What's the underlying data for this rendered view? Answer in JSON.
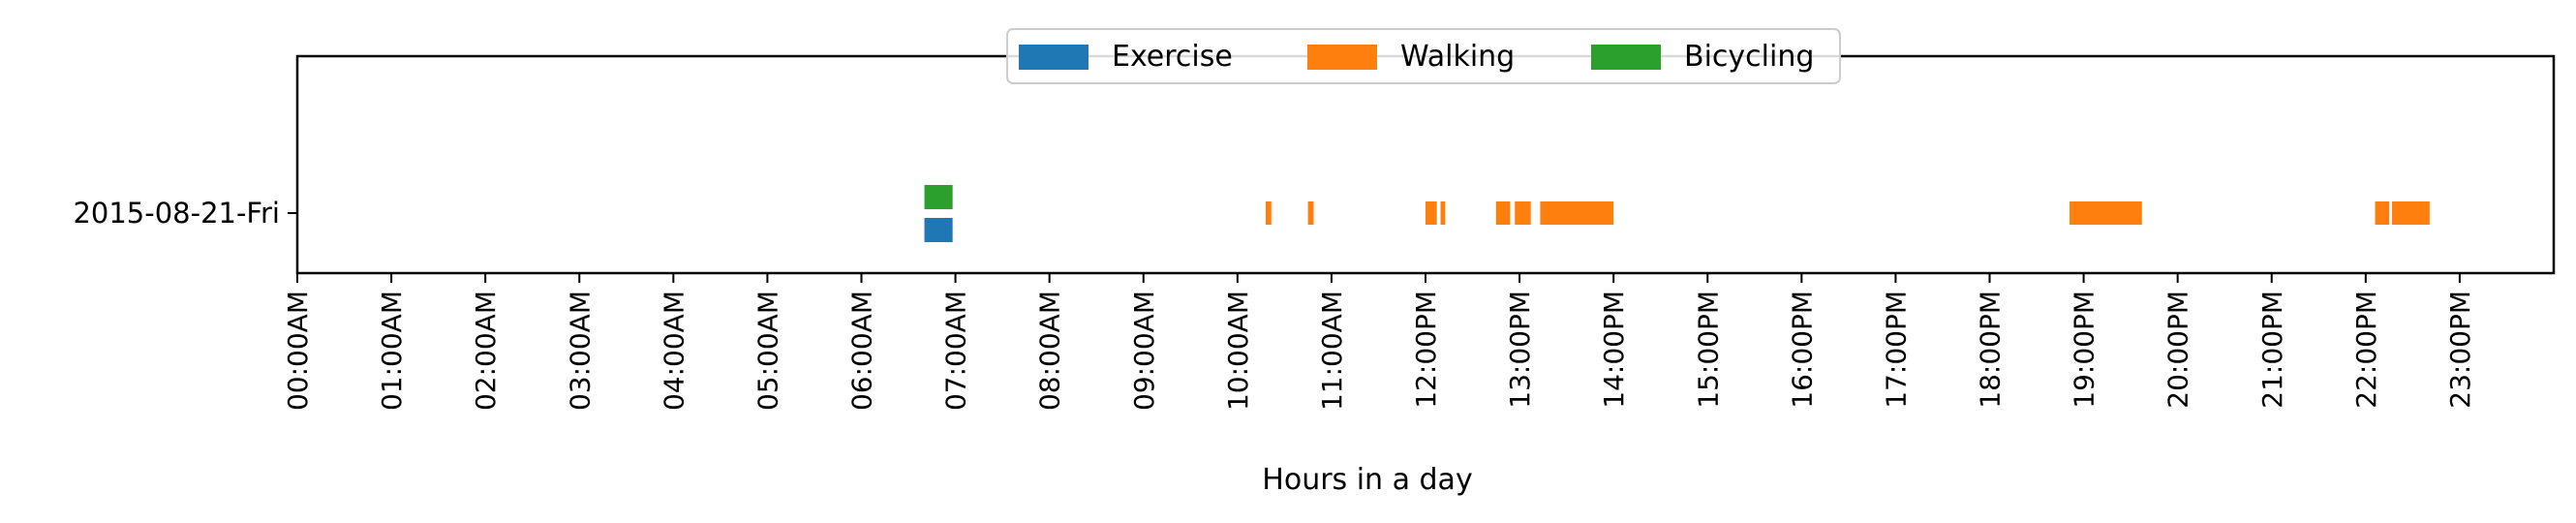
{
  "chart_data": {
    "type": "timeline",
    "title": "",
    "xlabel": "Hours in a day",
    "ylabel": "",
    "xlim": [
      0,
      24
    ],
    "x_ticks": [
      {
        "hour": 0,
        "label": "00:00AM"
      },
      {
        "hour": 1,
        "label": "01:00AM"
      },
      {
        "hour": 2,
        "label": "02:00AM"
      },
      {
        "hour": 3,
        "label": "03:00AM"
      },
      {
        "hour": 4,
        "label": "04:00AM"
      },
      {
        "hour": 5,
        "label": "05:00AM"
      },
      {
        "hour": 6,
        "label": "06:00AM"
      },
      {
        "hour": 7,
        "label": "07:00AM"
      },
      {
        "hour": 8,
        "label": "08:00AM"
      },
      {
        "hour": 9,
        "label": "09:00AM"
      },
      {
        "hour": 10,
        "label": "10:00AM"
      },
      {
        "hour": 11,
        "label": "11:00AM"
      },
      {
        "hour": 12,
        "label": "12:00PM"
      },
      {
        "hour": 13,
        "label": "13:00PM"
      },
      {
        "hour": 14,
        "label": "14:00PM"
      },
      {
        "hour": 15,
        "label": "15:00PM"
      },
      {
        "hour": 16,
        "label": "16:00PM"
      },
      {
        "hour": 17,
        "label": "17:00PM"
      },
      {
        "hour": 18,
        "label": "18:00PM"
      },
      {
        "hour": 19,
        "label": "19:00PM"
      },
      {
        "hour": 20,
        "label": "20:00PM"
      },
      {
        "hour": 21,
        "label": "21:00PM"
      },
      {
        "hour": 22,
        "label": "22:00PM"
      },
      {
        "hour": 23,
        "label": "23:00PM"
      }
    ],
    "categories": [
      "2015-08-21-Fri"
    ],
    "legend": {
      "placement": "top-center",
      "columns": 3
    },
    "grid": false,
    "series": [
      {
        "name": "Exercise",
        "color": "#1f77b4",
        "segments": [
          {
            "day": "2015-08-21-Fri",
            "start": 6.67,
            "end": 6.97
          }
        ]
      },
      {
        "name": "Walking",
        "color": "#ff7f0e",
        "segments": [
          {
            "day": "2015-08-21-Fri",
            "start": 10.3,
            "end": 10.36
          },
          {
            "day": "2015-08-21-Fri",
            "start": 10.75,
            "end": 10.81
          },
          {
            "day": "2015-08-21-Fri",
            "start": 12.0,
            "end": 12.12
          },
          {
            "day": "2015-08-21-Fri",
            "start": 12.16,
            "end": 12.21
          },
          {
            "day": "2015-08-21-Fri",
            "start": 12.75,
            "end": 12.9
          },
          {
            "day": "2015-08-21-Fri",
            "start": 12.95,
            "end": 13.12
          },
          {
            "day": "2015-08-21-Fri",
            "start": 13.22,
            "end": 14.0
          },
          {
            "day": "2015-08-21-Fri",
            "start": 18.85,
            "end": 19.62
          },
          {
            "day": "2015-08-21-Fri",
            "start": 22.1,
            "end": 22.25
          },
          {
            "day": "2015-08-21-Fri",
            "start": 22.28,
            "end": 22.68
          }
        ]
      },
      {
        "name": "Bicycling",
        "color": "#2ca02c",
        "segments": [
          {
            "day": "2015-08-21-Fri",
            "start": 6.67,
            "end": 6.97
          }
        ]
      }
    ]
  }
}
